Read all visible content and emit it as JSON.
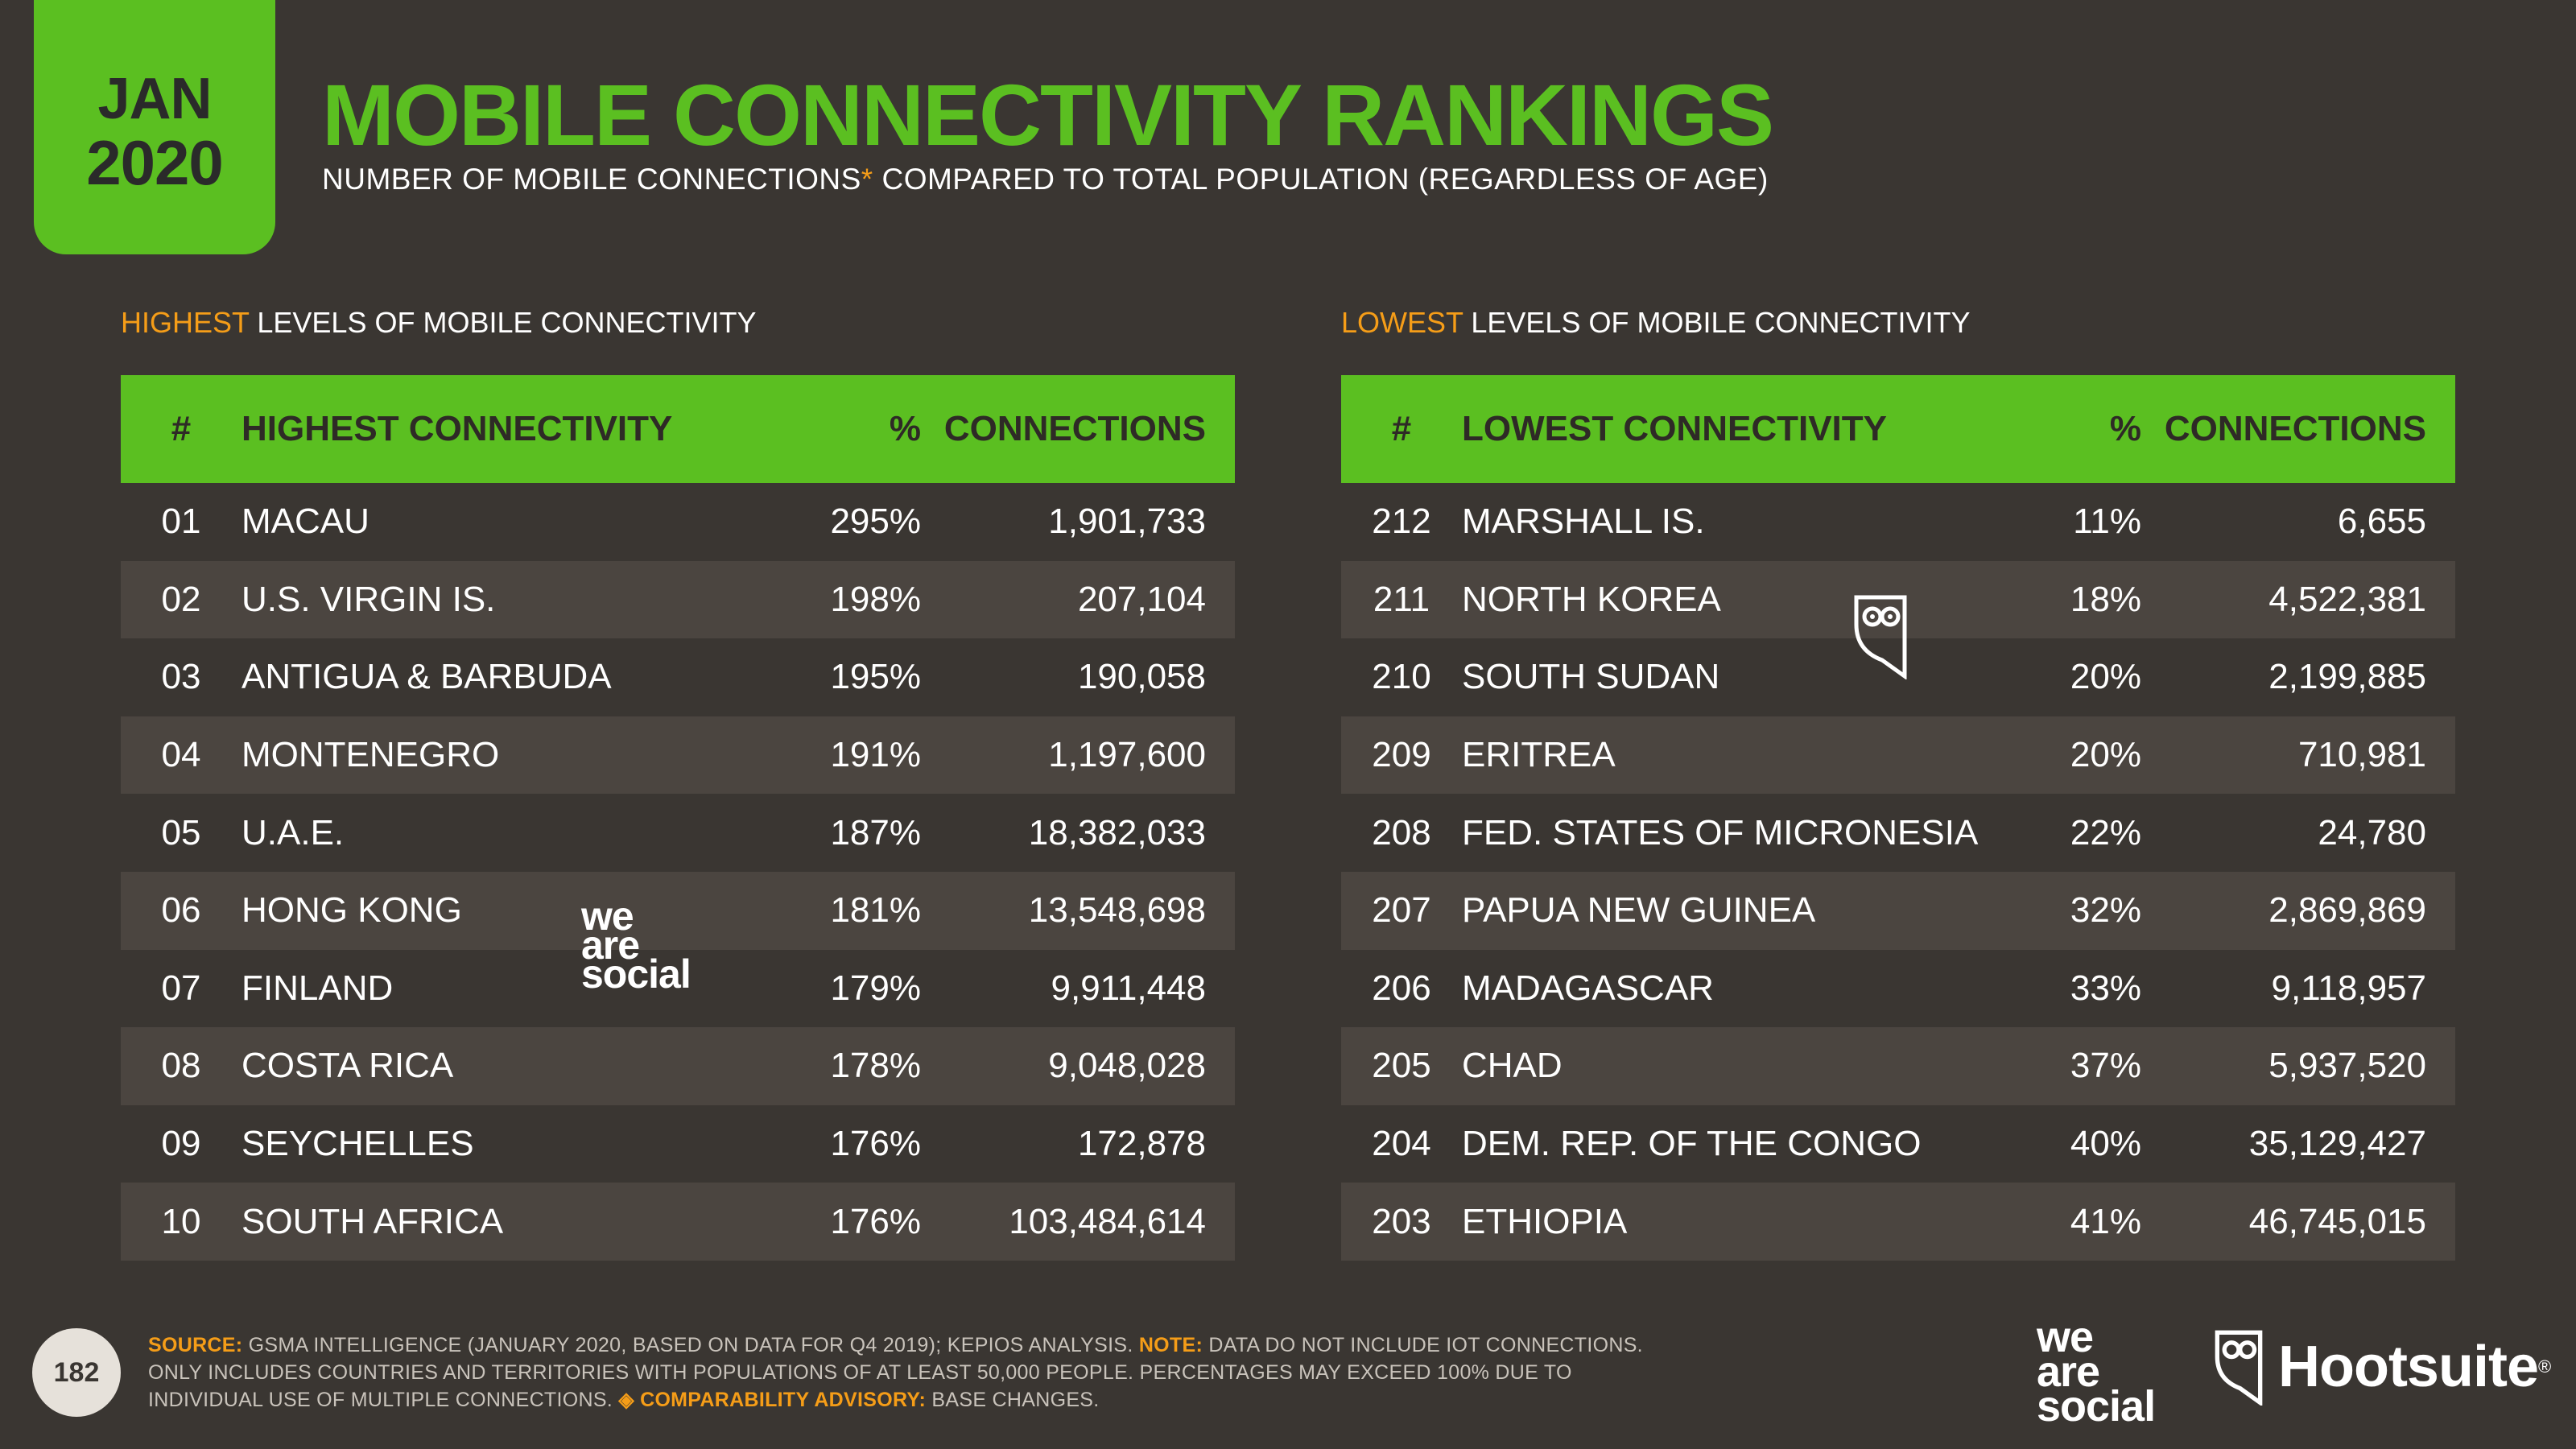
{
  "badge": {
    "month": "JAN",
    "year": "2020"
  },
  "title": "MOBILE CONNECTIVITY RANKINGS",
  "subtitle": {
    "text_a": "NUMBER OF MOBILE CONNECTIONS",
    "asterisk": "*",
    "text_b": " COMPARED TO TOTAL POPULATION (REGARDLESS OF AGE)"
  },
  "highest": {
    "label_hl": "HIGHEST",
    "label_rest": " LEVELS OF MOBILE CONNECTIVITY",
    "headers": {
      "rank": "#",
      "name": "HIGHEST CONNECTIVITY",
      "pct": "%",
      "conn": "CONNECTIONS"
    },
    "rows": [
      {
        "rank": "01",
        "name": "MACAU",
        "pct": "295%",
        "conn": "1,901,733"
      },
      {
        "rank": "02",
        "name": "U.S. VIRGIN IS.",
        "pct": "198%",
        "conn": "207,104"
      },
      {
        "rank": "03",
        "name": "ANTIGUA & BARBUDA",
        "pct": "195%",
        "conn": "190,058"
      },
      {
        "rank": "04",
        "name": "MONTENEGRO",
        "pct": "191%",
        "conn": "1,197,600"
      },
      {
        "rank": "05",
        "name": "U.A.E.",
        "pct": "187%",
        "conn": "18,382,033"
      },
      {
        "rank": "06",
        "name": "HONG KONG",
        "pct": "181%",
        "conn": "13,548,698"
      },
      {
        "rank": "07",
        "name": "FINLAND",
        "pct": "179%",
        "conn": "9,911,448"
      },
      {
        "rank": "08",
        "name": "COSTA RICA",
        "pct": "178%",
        "conn": "9,048,028"
      },
      {
        "rank": "09",
        "name": "SEYCHELLES",
        "pct": "176%",
        "conn": "172,878"
      },
      {
        "rank": "10",
        "name": "SOUTH AFRICA",
        "pct": "176%",
        "conn": "103,484,614"
      }
    ]
  },
  "lowest": {
    "label_hl": "LOWEST",
    "label_rest": " LEVELS OF MOBILE CONNECTIVITY",
    "headers": {
      "rank": "#",
      "name": "LOWEST CONNECTIVITY",
      "pct": "%",
      "conn": "CONNECTIONS"
    },
    "rows": [
      {
        "rank": "212",
        "name": "MARSHALL IS.",
        "pct": "11%",
        "conn": "6,655"
      },
      {
        "rank": "211",
        "name": "NORTH KOREA",
        "pct": "18%",
        "conn": "4,522,381"
      },
      {
        "rank": "210",
        "name": "SOUTH SUDAN",
        "pct": "20%",
        "conn": "2,199,885"
      },
      {
        "rank": "209",
        "name": "ERITREA",
        "pct": "20%",
        "conn": "710,981"
      },
      {
        "rank": "208",
        "name": "FED. STATES OF MICRONESIA",
        "pct": "22%",
        "conn": "24,780"
      },
      {
        "rank": "207",
        "name": "PAPUA NEW GUINEA",
        "pct": "32%",
        "conn": "2,869,869"
      },
      {
        "rank": "206",
        "name": "MADAGASCAR",
        "pct": "33%",
        "conn": "9,118,957"
      },
      {
        "rank": "205",
        "name": "CHAD",
        "pct": "37%",
        "conn": "5,937,520"
      },
      {
        "rank": "204",
        "name": "DEM. REP. OF THE CONGO",
        "pct": "40%",
        "conn": "35,129,427"
      },
      {
        "rank": "203",
        "name": "ETHIOPIA",
        "pct": "41%",
        "conn": "46,745,015"
      }
    ]
  },
  "footer": {
    "page_number": "182",
    "source_label": "SOURCE:",
    "source_text": " GSMA INTELLIGENCE (JANUARY 2020, BASED ON DATA FOR Q4 2019); KEPIOS ANALYSIS. ",
    "note_label": "NOTE:",
    "note_text": " DATA DO NOT INCLUDE IOT CONNECTIONS. ONLY INCLUDES COUNTRIES AND TERRITORIES WITH POPULATIONS OF AT LEAST 50,000 PEOPLE. PERCENTAGES MAY EXCEED 100% DUE TO INDIVIDUAL USE OF MULTIPLE CONNECTIONS. ",
    "advisory_label": "◈ COMPARABILITY ADVISORY:",
    "advisory_text": " BASE CHANGES."
  },
  "logos": {
    "was_line1": "we",
    "was_line2": "are",
    "was_line3": "social",
    "hootsuite": "Hootsuite",
    "reg": "®"
  },
  "colors": {
    "accent": "#5bbf21",
    "highlight": "#f59d18",
    "background": "#3a3632",
    "row_alt": "#4b4540"
  },
  "icons": [
    "owl-icon"
  ]
}
